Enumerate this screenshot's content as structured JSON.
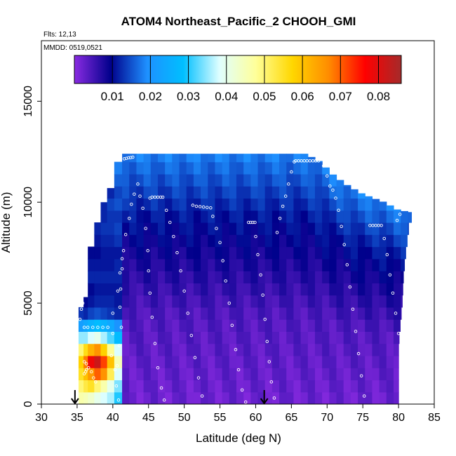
{
  "chart_data": {
    "type": "heatmap",
    "title": "ATOM4 Northeast_Pacific_2 CHOOH_GMI",
    "flights_label": "Flts: 12,13",
    "mmdd_label": "MMDD: 0519,0521",
    "xlabel": "Latitude (deg N)",
    "ylabel": "Altitude (m)",
    "xlim": [
      30,
      85
    ],
    "ylim": [
      0,
      18000
    ],
    "x_ticks": [
      "30",
      "35",
      "40",
      "45",
      "50",
      "55",
      "60",
      "65",
      "70",
      "75",
      "80",
      "85"
    ],
    "y_ticks": [
      "0",
      "5000",
      "10000",
      "15000"
    ],
    "colorbar": {
      "range": [
        0,
        0.086
      ],
      "ticks": [
        "0.01",
        "0.02",
        "0.03",
        "0.04",
        "0.05",
        "0.06",
        "0.07",
        "0.08"
      ],
      "colors": [
        "#8a2be2",
        "#00008b",
        "#1e90ff",
        "#00bfff",
        "#e0ffff",
        "#ffff99",
        "#ffd700",
        "#ff8c00",
        "#ff0000",
        "#a52a2a"
      ]
    },
    "arrows_at_latitude": [
      34.7,
      61.2
    ],
    "columns": [
      {
        "lat": [
          35.2,
          35.9
        ],
        "ztop": 4900,
        "vals": [
          [
            0,
            0.046
          ],
          [
            600,
            0.05
          ],
          [
            1200,
            0.055
          ],
          [
            1800,
            0.058
          ],
          [
            2400,
            0.05
          ],
          [
            3000,
            0.035
          ],
          [
            3600,
            0.022
          ],
          [
            4200,
            0.013
          ]
        ]
      },
      {
        "lat": [
          35.9,
          36.5
        ],
        "ztop": 5300,
        "vals": [
          [
            0,
            0.045
          ],
          [
            600,
            0.053
          ],
          [
            1200,
            0.06
          ],
          [
            1800,
            0.068
          ],
          [
            2400,
            0.056
          ],
          [
            3000,
            0.035
          ],
          [
            3600,
            0.024
          ],
          [
            4200,
            0.012
          ],
          [
            4800,
            0.01
          ]
        ]
      },
      {
        "lat": [
          36.5,
          37.4
        ],
        "ztop": 8000,
        "vals": [
          [
            0,
            0.043
          ],
          [
            600,
            0.055
          ],
          [
            1200,
            0.065
          ],
          [
            1800,
            0.078
          ],
          [
            2400,
            0.062
          ],
          [
            3000,
            0.038
          ],
          [
            3600,
            0.026
          ],
          [
            4200,
            0.014
          ],
          [
            4800,
            0.011
          ],
          [
            5400,
            0.01
          ],
          [
            6000,
            0.012
          ],
          [
            6600,
            0.011
          ],
          [
            7200,
            0.01
          ]
        ]
      },
      {
        "lat": [
          37.4,
          38.3
        ],
        "ztop": 9200,
        "vals": [
          [
            0,
            0.04
          ],
          [
            600,
            0.05
          ],
          [
            1200,
            0.07
          ],
          [
            1800,
            0.082
          ],
          [
            2400,
            0.066
          ],
          [
            3000,
            0.04
          ],
          [
            3600,
            0.028
          ],
          [
            4200,
            0.015
          ],
          [
            4800,
            0.012
          ],
          [
            5400,
            0.011
          ],
          [
            6000,
            0.012
          ],
          [
            6600,
            0.011
          ],
          [
            7200,
            0.01
          ],
          [
            7800,
            0.011
          ],
          [
            8400,
            0.012
          ]
        ]
      },
      {
        "lat": [
          38.3,
          39.2
        ],
        "ztop": 10000,
        "vals": [
          [
            0,
            0.038
          ],
          [
            600,
            0.046
          ],
          [
            1200,
            0.066
          ],
          [
            1800,
            0.072
          ],
          [
            2400,
            0.058
          ],
          [
            3000,
            0.036
          ],
          [
            3600,
            0.026
          ],
          [
            4200,
            0.014
          ],
          [
            4800,
            0.012
          ],
          [
            5400,
            0.011
          ],
          [
            6000,
            0.012
          ],
          [
            6600,
            0.011
          ],
          [
            7200,
            0.011
          ],
          [
            7800,
            0.012
          ],
          [
            8400,
            0.013
          ],
          [
            9000,
            0.012
          ],
          [
            9600,
            0.012
          ]
        ]
      },
      {
        "lat": [
          39.2,
          40.2
        ],
        "ztop": 10700,
        "vals": [
          [
            0,
            0.036
          ],
          [
            600,
            0.04
          ],
          [
            1200,
            0.052
          ],
          [
            1800,
            0.06
          ],
          [
            2400,
            0.048
          ],
          [
            3000,
            0.032
          ],
          [
            3600,
            0.024
          ],
          [
            4200,
            0.013
          ],
          [
            4800,
            0.012
          ],
          [
            5400,
            0.011
          ],
          [
            6000,
            0.012
          ],
          [
            6600,
            0.011
          ],
          [
            7200,
            0.011
          ],
          [
            7800,
            0.012
          ],
          [
            8400,
            0.013
          ],
          [
            9000,
            0.013
          ],
          [
            9600,
            0.014
          ],
          [
            10200,
            0.012
          ]
        ]
      },
      {
        "lat": [
          40.2,
          41.3
        ],
        "ztop": 12000,
        "vals": [
          [
            0,
            0.03
          ],
          [
            600,
            0.034
          ],
          [
            1200,
            0.038
          ],
          [
            1800,
            0.045
          ],
          [
            2400,
            0.038
          ],
          [
            3000,
            0.028
          ],
          [
            3600,
            0.02
          ],
          [
            4200,
            0.012
          ],
          [
            4800,
            0.011
          ],
          [
            5400,
            0.011
          ],
          [
            6000,
            0.012
          ],
          [
            6600,
            0.012
          ],
          [
            7200,
            0.011
          ],
          [
            7800,
            0.013
          ],
          [
            8400,
            0.014
          ],
          [
            9000,
            0.013
          ],
          [
            9600,
            0.015
          ],
          [
            10200,
            0.014
          ],
          [
            10800,
            0.016
          ],
          [
            11400,
            0.018
          ]
        ]
      }
    ],
    "field_east_of_41": {
      "lat_range": [
        41.3,
        82.0
      ],
      "surface_value": 0.002,
      "mid_value": 0.004,
      "upper_value": 0.011,
      "top_value": 0.018,
      "ztop_by_lat": [
        [
          41.3,
          12400
        ],
        [
          50,
          12400
        ],
        [
          60,
          12400
        ],
        [
          67,
          12400
        ],
        [
          69,
          12000
        ],
        [
          71,
          11300
        ],
        [
          73,
          10800
        ],
        [
          75,
          10400
        ],
        [
          78,
          10000
        ],
        [
          80,
          9600
        ],
        [
          82,
          9500
        ]
      ],
      "zbottom_by_lat": [
        [
          41.3,
          0
        ],
        [
          78,
          0
        ],
        [
          80,
          0
        ]
      ],
      "east_edge_by_alt": [
        [
          0,
          80.0
        ],
        [
          3000,
          80.0
        ],
        [
          5000,
          80.5
        ],
        [
          6500,
          80.7
        ],
        [
          7500,
          81.0
        ],
        [
          9000,
          81.5
        ],
        [
          9500,
          82.0
        ]
      ]
    },
    "flight_track_points": [
      [
        41.6,
        12150
      ],
      [
        41.9,
        12170
      ],
      [
        42.2,
        12200
      ],
      [
        42.5,
        12210
      ],
      [
        42.8,
        12230
      ],
      [
        40.0,
        4500
      ],
      [
        40.0,
        3500
      ],
      [
        39.8,
        2400
      ],
      [
        40.3,
        1700
      ],
      [
        40.5,
        900
      ],
      [
        40.8,
        200
      ],
      [
        36.0,
        3800
      ],
      [
        36.5,
        3800
      ],
      [
        37.2,
        3800
      ],
      [
        37.9,
        3800
      ],
      [
        38.6,
        3800
      ],
      [
        39.3,
        3800
      ],
      [
        36.0,
        2100
      ],
      [
        36.3,
        2000
      ],
      [
        36.6,
        1800
      ],
      [
        37.0,
        1600
      ],
      [
        37.3,
        1300
      ],
      [
        37.6,
        1100
      ],
      [
        36.0,
        1500
      ],
      [
        36.2,
        1600
      ],
      [
        36.3,
        1700
      ],
      [
        35.8,
        5000
      ],
      [
        35.6,
        4700
      ],
      [
        35.4,
        4200
      ],
      [
        41.0,
        4800
      ],
      [
        41.1,
        5700
      ],
      [
        41.3,
        6700
      ],
      [
        41.5,
        7600
      ],
      [
        41.8,
        8400
      ],
      [
        42.3,
        9200
      ],
      [
        42.6,
        9900
      ],
      [
        43.0,
        10400
      ],
      [
        43.5,
        10900
      ],
      [
        43.8,
        10300
      ],
      [
        44.2,
        9700
      ],
      [
        44.6,
        8700
      ],
      [
        44.9,
        7600
      ],
      [
        45.0,
        6600
      ],
      [
        45.2,
        5500
      ],
      [
        45.5,
        4300
      ],
      [
        45.9,
        3000
      ],
      [
        46.3,
        1800
      ],
      [
        46.8,
        800
      ],
      [
        47.2,
        200
      ],
      [
        45.2,
        10200
      ],
      [
        45.5,
        10250
      ],
      [
        45.9,
        10250
      ],
      [
        46.3,
        10250
      ],
      [
        46.7,
        10250
      ],
      [
        47.0,
        10250
      ],
      [
        47.5,
        9600
      ],
      [
        48.0,
        9000
      ],
      [
        48.5,
        8300
      ],
      [
        49.0,
        7500
      ],
      [
        49.5,
        6600
      ],
      [
        50.0,
        5600
      ],
      [
        50.5,
        4500
      ],
      [
        51.0,
        3400
      ],
      [
        51.5,
        2300
      ],
      [
        52.0,
        1300
      ],
      [
        52.5,
        400
      ],
      [
        51.2,
        9850
      ],
      [
        51.7,
        9800
      ],
      [
        52.2,
        9780
      ],
      [
        52.7,
        9760
      ],
      [
        53.2,
        9740
      ],
      [
        53.7,
        9720
      ],
      [
        54.0,
        9300
      ],
      [
        54.5,
        8700
      ],
      [
        55.0,
        8000
      ],
      [
        55.4,
        7100
      ],
      [
        55.8,
        6100
      ],
      [
        56.3,
        5000
      ],
      [
        56.7,
        3900
      ],
      [
        57.2,
        2700
      ],
      [
        57.6,
        1700
      ],
      [
        58.1,
        700
      ],
      [
        58.6,
        100
      ],
      [
        59.0,
        9000
      ],
      [
        59.3,
        9000
      ],
      [
        59.6,
        9000
      ],
      [
        59.9,
        9000
      ],
      [
        60.0,
        8300
      ],
      [
        60.3,
        7400
      ],
      [
        60.7,
        6400
      ],
      [
        61.0,
        5400
      ],
      [
        61.3,
        4200
      ],
      [
        61.6,
        3100
      ],
      [
        61.9,
        2100
      ],
      [
        62.2,
        1100
      ],
      [
        62.6,
        300
      ],
      [
        63.0,
        8500
      ],
      [
        63.4,
        9200
      ],
      [
        63.8,
        9800
      ],
      [
        64.2,
        10300
      ],
      [
        64.6,
        10900
      ],
      [
        65.0,
        11500
      ],
      [
        65.4,
        12000
      ],
      [
        65.6,
        12050
      ],
      [
        66.0,
        12050
      ],
      [
        66.4,
        12050
      ],
      [
        66.8,
        12050
      ],
      [
        67.2,
        12050
      ],
      [
        67.6,
        12050
      ],
      [
        68.0,
        12050
      ],
      [
        68.4,
        12050
      ],
      [
        68.8,
        12050
      ],
      [
        69.5,
        11800
      ],
      [
        70.0,
        11300
      ],
      [
        70.4,
        10800
      ],
      [
        70.8,
        10600
      ],
      [
        71.2,
        10200
      ],
      [
        71.6,
        9600
      ],
      [
        72.0,
        8800
      ],
      [
        72.4,
        7900
      ],
      [
        72.8,
        6900
      ],
      [
        73.2,
        5800
      ],
      [
        73.6,
        4700
      ],
      [
        74.0,
        3600
      ],
      [
        74.4,
        2500
      ],
      [
        74.8,
        1400
      ],
      [
        75.2,
        400
      ],
      [
        76.0,
        8850
      ],
      [
        76.4,
        8850
      ],
      [
        76.8,
        8850
      ],
      [
        77.2,
        8850
      ],
      [
        77.6,
        8850
      ],
      [
        78.0,
        8200
      ],
      [
        78.4,
        7400
      ],
      [
        78.8,
        6400
      ],
      [
        79.2,
        5500
      ],
      [
        79.6,
        4500
      ],
      [
        80.0,
        3500
      ],
      [
        80.3,
        2500
      ],
      [
        79.8,
        9100
      ],
      [
        80.2,
        9400
      ],
      [
        40.6,
        1900
      ],
      [
        40.9,
        2900
      ],
      [
        41.2,
        3800
      ],
      [
        40.7,
        5600
      ],
      [
        41.0,
        6500
      ],
      [
        41.3,
        7200
      ]
    ]
  }
}
